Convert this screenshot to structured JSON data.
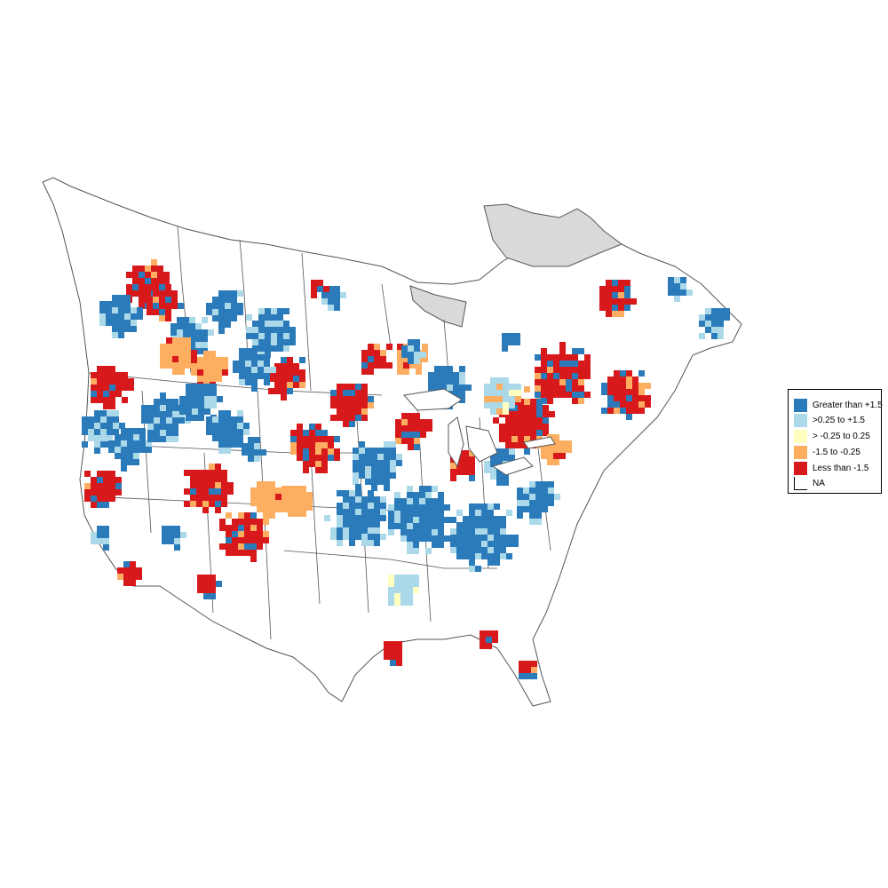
{
  "legend": {
    "items": [
      {
        "label": "Greater than +1.5",
        "color": "#2b7bba"
      },
      {
        "label": ">0.25 to +1.5",
        "color": "#abd9e9"
      },
      {
        "label": "> -0.25 to 0.25",
        "color": "#ffffbf"
      },
      {
        "label": "-1.5 to -0.25",
        "color": "#fdae61"
      },
      {
        "label": "Less than -1.5",
        "color": "#d7191c"
      },
      {
        "label": "NA",
        "color": "#ffffff"
      }
    ]
  },
  "colors": {
    "border": "#555555",
    "no_data_region": "#d9d9d9",
    "land": "#ffffff"
  }
}
